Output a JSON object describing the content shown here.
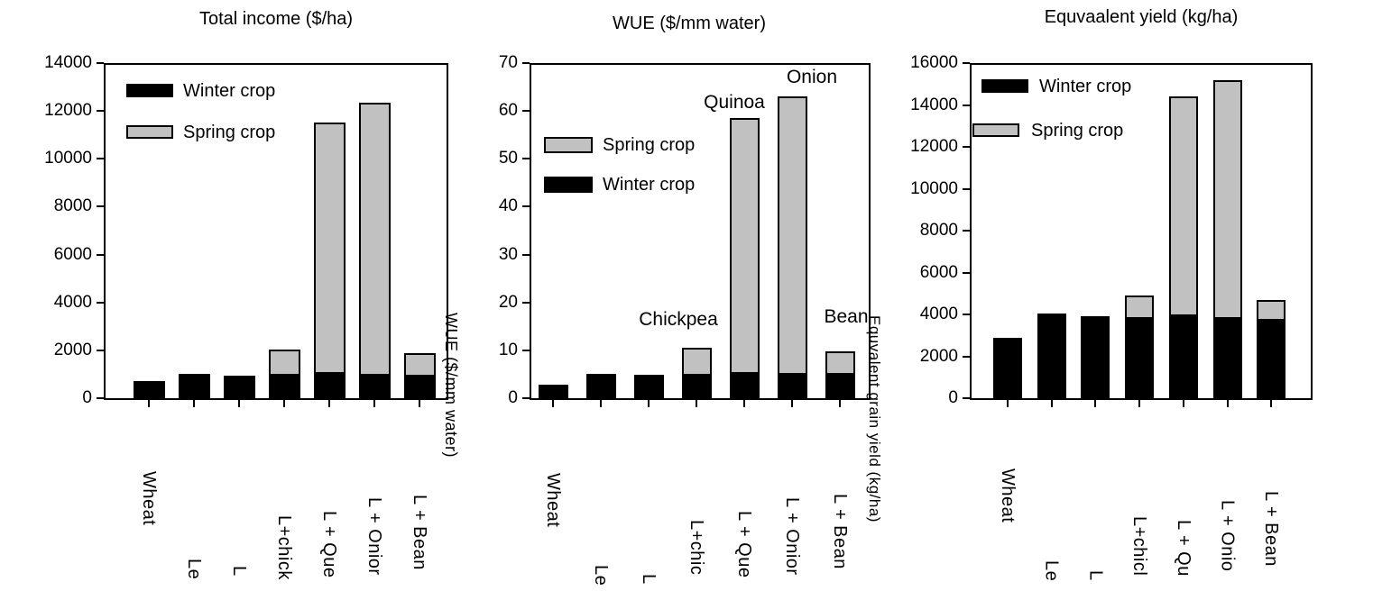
{
  "figure": {
    "background": "#ffffff",
    "bar_colors": {
      "winter": "#000000",
      "spring": "#c1c1c1"
    },
    "axis_color": "#000000"
  },
  "side_labels": {
    "wue": "WUE ($/mm water)",
    "equivalent": "Equvalent grain yield (kg/ha)"
  },
  "chart_data": [
    {
      "type": "bar",
      "stacked": true,
      "title": "Total income ($/ha)",
      "ylabel": "",
      "xlabel": "",
      "ylim": [
        0,
        14000
      ],
      "yticks": [
        0,
        2000,
        4000,
        6000,
        8000,
        10000,
        12000,
        14000
      ],
      "categories": [
        "Wheat",
        "Le",
        "L",
        "L+chick",
        "L + Que",
        "L + Onior",
        "L + Bean"
      ],
      "series": [
        {
          "name": "Winter crop",
          "color_key": "winter",
          "values": [
            700,
            1000,
            950,
            950,
            1000,
            950,
            900
          ]
        },
        {
          "name": "Spring crop",
          "color_key": "spring",
          "values": [
            0,
            0,
            0,
            1100,
            10500,
            11400,
            1000
          ]
        }
      ],
      "totals": [
        700,
        1000,
        950,
        2050,
        11500,
        12350,
        1900
      ],
      "legend": {
        "position": "top-left",
        "entries": [
          {
            "label": "Winter crop",
            "series": "winter"
          },
          {
            "label": "Spring crop",
            "series": "spring"
          }
        ]
      },
      "annotations": [],
      "grid": false
    },
    {
      "type": "bar",
      "stacked": true,
      "title": "WUE ($/mm water)",
      "ylabel": "WUE ($/mm water)",
      "xlabel": "",
      "ylim": [
        0,
        70
      ],
      "yticks": [
        0,
        10,
        20,
        30,
        40,
        50,
        60,
        70
      ],
      "categories": [
        "Wheat",
        "Le",
        "L",
        "L+chic",
        "L + Que",
        "L + Onior",
        "L + Bean"
      ],
      "series": [
        {
          "name": "Winter crop",
          "color_key": "winter",
          "values": [
            2.8,
            5.0,
            4.8,
            4.7,
            5.0,
            4.8,
            4.8
          ]
        },
        {
          "name": "Spring crop",
          "color_key": "spring",
          "values": [
            0,
            0,
            0,
            5.8,
            53.5,
            58.2,
            4.9
          ]
        }
      ],
      "totals": [
        2.8,
        5.0,
        4.8,
        10.5,
        58.5,
        63.0,
        9.7
      ],
      "legend": {
        "position": "middle-left",
        "entries": [
          {
            "label": "Spring crop",
            "series": "spring"
          },
          {
            "label": "Winter crop",
            "series": "winter"
          }
        ]
      },
      "annotations": [
        {
          "text": "Chickpea",
          "bar_index": 3
        },
        {
          "text": "Quinoa",
          "bar_index": 4
        },
        {
          "text": "Onion",
          "bar_index": 5
        },
        {
          "text": "Bean",
          "bar_index": 6
        }
      ],
      "grid": false
    },
    {
      "type": "bar",
      "stacked": true,
      "title": "Equvaalent yield (kg/ha)",
      "ylabel": "Equvalent grain yield (kg/ha)",
      "xlabel": "",
      "ylim": [
        0,
        16000
      ],
      "yticks": [
        0,
        2000,
        4000,
        6000,
        8000,
        10000,
        12000,
        14000,
        16000
      ],
      "categories": [
        "Wheat",
        "Le",
        "L",
        "L+chicl",
        "L + Qu",
        "L + Onio",
        "L + Bean"
      ],
      "series": [
        {
          "name": "Winter crop",
          "color_key": "winter",
          "values": [
            2900,
            4050,
            3900,
            3800,
            3900,
            3800,
            3700
          ]
        },
        {
          "name": "Spring crop",
          "color_key": "spring",
          "values": [
            0,
            0,
            0,
            1100,
            10500,
            11400,
            1000
          ]
        }
      ],
      "totals": [
        2900,
        4050,
        3900,
        4900,
        14400,
        15200,
        4700
      ],
      "legend": {
        "position": "top-left",
        "entries": [
          {
            "label": "Winter crop",
            "series": "winter"
          },
          {
            "label": "Spring crop",
            "series": "spring"
          }
        ]
      },
      "annotations": [],
      "grid": false
    }
  ]
}
